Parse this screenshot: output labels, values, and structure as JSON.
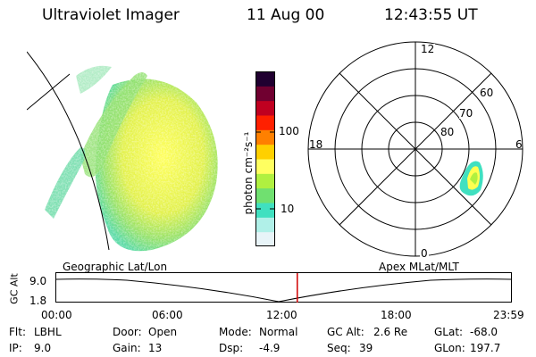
{
  "header": {
    "instrument": "Ultraviolet Imager",
    "date": "11 Aug 00",
    "time": "12:43:55 UT"
  },
  "colorbar": {
    "unit_label": "photon cm⁻²s⁻¹",
    "ticks": [
      "100",
      "10"
    ]
  },
  "polar": {
    "hour_labels": {
      "top": "12",
      "left": "18",
      "right": "6",
      "bottom": "0"
    },
    "lat_labels": [
      "60",
      "70",
      "80"
    ]
  },
  "map_labels": {
    "left": "Geographic Lat/Lon",
    "right": "Apex MLat/MLT"
  },
  "altitude_plot": {
    "ylabel": "GC Alt",
    "yticks": [
      "9.0",
      "1.8"
    ],
    "xticks": [
      "00:00",
      "06:00",
      "12:00",
      "18:00",
      "23:59"
    ],
    "current_time_fraction": 0.53
  },
  "status": {
    "row1": [
      {
        "label": "Flt:",
        "value": "LBHL"
      },
      {
        "label": "Door:",
        "value": "Open"
      },
      {
        "label": "Mode:",
        "value": "Normal"
      },
      {
        "label": "GC Alt:",
        "value": "2.6 Re"
      },
      {
        "label": "GLat:",
        "value": "-68.0"
      }
    ],
    "row2": [
      {
        "label": "IP:",
        "value": "9.0"
      },
      {
        "label": "Gain:",
        "value": "13"
      },
      {
        "label": "Dsp:",
        "value": "-4.9"
      },
      {
        "label": "Seq:",
        "value": "39"
      },
      {
        "label": "GLon:",
        "value": "197.7"
      }
    ]
  },
  "colors": {
    "marker": "#d00000",
    "colorbar": [
      "#e8f4f8",
      "#b0f0e8",
      "#40e0c0",
      "#70e070",
      "#b0f040",
      "#ffff60",
      "#ffd000",
      "#ff8000",
      "#ff2000",
      "#c00020",
      "#700030",
      "#200030"
    ]
  }
}
